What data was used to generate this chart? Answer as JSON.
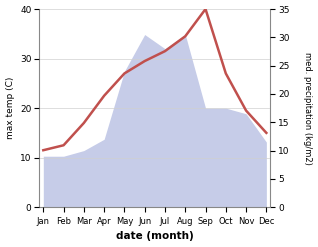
{
  "months": [
    "Jan",
    "Feb",
    "Mar",
    "Apr",
    "May",
    "Jun",
    "Jul",
    "Aug",
    "Sep",
    "Oct",
    "Nov",
    "Dec"
  ],
  "temp": [
    11.5,
    12.5,
    17.0,
    22.5,
    27.0,
    29.5,
    31.5,
    34.5,
    40.0,
    27.0,
    19.5,
    15.0
  ],
  "precip": [
    9.0,
    9.0,
    10.0,
    12.0,
    24.0,
    30.5,
    28.0,
    30.5,
    17.5,
    17.5,
    16.5,
    11.5
  ],
  "temp_ylim": [
    0,
    40
  ],
  "precip_ylim": [
    0,
    35
  ],
  "temp_yticks": [
    0,
    10,
    20,
    30,
    40
  ],
  "precip_yticks": [
    0,
    5,
    10,
    15,
    20,
    25,
    30,
    35
  ],
  "temp_color": "#c0504d",
  "precip_color": "#c6cce8",
  "xlabel": "date (month)",
  "ylabel_left": "max temp (C)",
  "ylabel_right": "med. precipitation (kg/m2)",
  "background_color": "#ffffff",
  "grid_color": "#d0d0d0"
}
